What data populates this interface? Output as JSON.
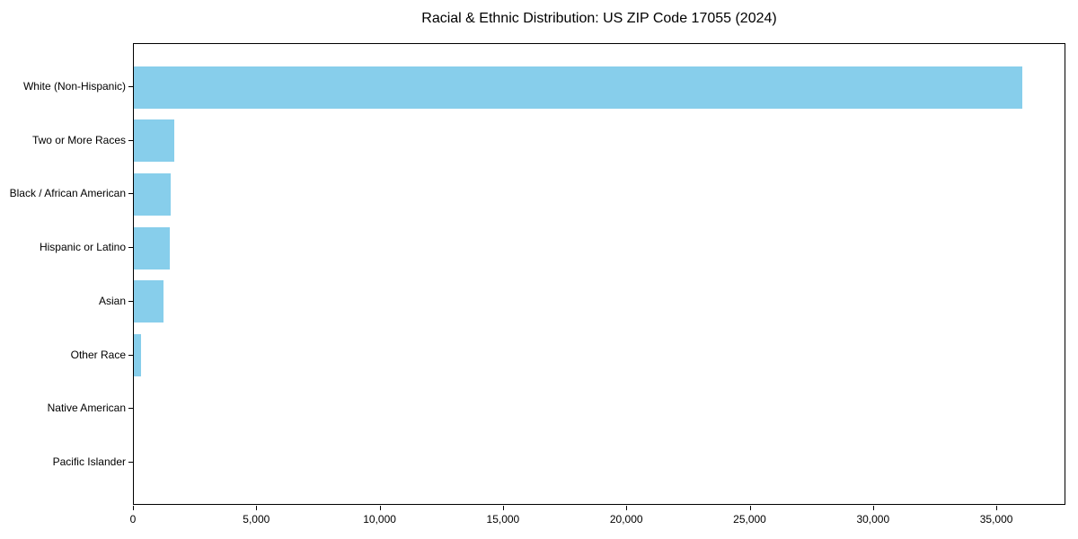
{
  "chart_data": {
    "type": "bar",
    "orientation": "horizontal",
    "title": "Racial & Ethnic Distribution: US ZIP Code 17055 (2024)",
    "categories": [
      "White (Non-Hispanic)",
      "Two or More Races",
      "Black / African American",
      "Hispanic or Latino",
      "Asian",
      "Other Race",
      "Native American",
      "Pacific Islander"
    ],
    "values": [
      36000,
      1650,
      1500,
      1460,
      1190,
      290,
      0,
      0
    ],
    "xlabel": "",
    "ylabel": "",
    "xlim": [
      0,
      37800
    ],
    "x_ticks": [
      0,
      5000,
      10000,
      15000,
      20000,
      25000,
      30000,
      35000
    ],
    "x_tick_labels": [
      "0",
      "5,000",
      "10,000",
      "15,000",
      "20,000",
      "25,000",
      "30,000",
      "35,000"
    ],
    "bar_color": "#87CEEB",
    "frame_color": "#000000",
    "background_color": "#FFFFFF",
    "grid": false,
    "legend": "none"
  }
}
